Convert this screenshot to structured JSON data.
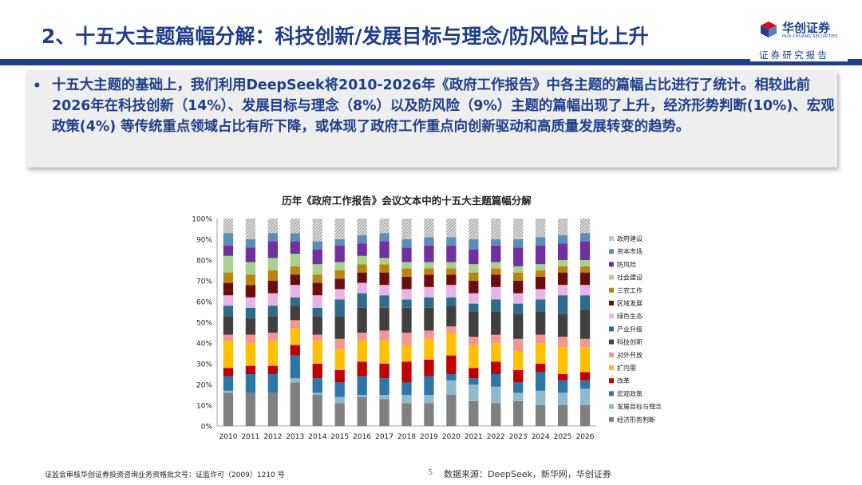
{
  "header": {
    "title": "2、十五大主题篇幅分解：科技创新/发展目标与理念/防风险占比上升",
    "logo_text": "华创证券",
    "logo_en": "HUA CHUANG SECURITIES",
    "report_tag": "证券研究报告"
  },
  "summary": {
    "bullet": "•",
    "text": "十五大主题的基础上，我们利用DeepSeek将2010-2026年《政府工作报告》中各主题的篇幅占比进行了统计。相较此前2026年在科技创新（14%）、发展目标与理念（8%）以及防风险（9%）主题的篇幅出现了上升，经济形势判断(10%)、宏观政策(4%) 等传统重点领域占比有所下降，或体现了政府工作重点向创新驱动和高质量发展转变的趋势。"
  },
  "footer": {
    "license": "证监会审核华创证券投资咨询业务资格批文号：证监许可（2009）1210 号",
    "page": "5",
    "source": "数据来源：DeepSeek，新华网，华创证券"
  },
  "colors": {
    "brand": "#1f3e8c",
    "brand_red": "#c8102e"
  },
  "chart_data": {
    "type": "bar",
    "stacked": true,
    "percent": true,
    "title": "历年《政府工作报告》会议文本中的十五大主题篇幅分解",
    "ylim": [
      0,
      100
    ],
    "yticks": [
      "0%",
      "10%",
      "20%",
      "30%",
      "40%",
      "50%",
      "60%",
      "70%",
      "80%",
      "90%",
      "100%"
    ],
    "legend_position": "right",
    "categories": [
      "2010",
      "2011",
      "2012",
      "2013",
      "2014",
      "2015",
      "2016",
      "2017",
      "2018",
      "2019",
      "2020",
      "2021",
      "2022",
      "2023",
      "2024",
      "2025",
      "2026"
    ],
    "series": [
      {
        "name": "经济形势判断",
        "color": "#808080",
        "values": [
          16,
          16,
          16,
          21,
          15,
          11,
          14,
          13,
          11,
          11,
          15,
          12,
          11,
          12,
          10,
          10,
          10
        ]
      },
      {
        "name": "发展目标与理念",
        "color": "#8fb9cf",
        "values": [
          1,
          0,
          0,
          2,
          1,
          3,
          1,
          2,
          4,
          4,
          7,
          8,
          8,
          4,
          7,
          6,
          8
        ]
      },
      {
        "name": "宏观政策",
        "color": "#2e75a8",
        "values": [
          7,
          9,
          9,
          11,
          7,
          7,
          9,
          8,
          6,
          9,
          3,
          3,
          6,
          5,
          9,
          6,
          4
        ]
      },
      {
        "name": "改革",
        "color": "#c00000",
        "values": [
          4,
          4,
          4,
          5,
          7,
          6,
          7,
          7,
          10,
          8,
          9,
          5,
          6,
          6,
          4,
          3,
          4
        ]
      },
      {
        "name": "扩内需",
        "color": "#ffc000",
        "values": [
          13,
          11,
          12,
          8,
          11,
          10,
          10,
          11,
          8,
          10,
          11,
          11,
          9,
          9,
          10,
          13,
          12
        ]
      },
      {
        "name": "对外开放",
        "color": "#f4968f",
        "values": [
          3,
          4,
          4,
          4,
          3,
          5,
          4,
          5,
          6,
          4,
          3,
          4,
          4,
          6,
          4,
          5,
          4
        ]
      },
      {
        "name": "科技创新",
        "color": "#404040",
        "values": [
          9,
          8,
          8,
          7,
          9,
          11,
          12,
          11,
          12,
          11,
          10,
          12,
          11,
          12,
          11,
          11,
          14
        ]
      },
      {
        "name": "产业升级",
        "color": "#2f6b8c",
        "values": [
          5,
          5,
          5,
          4,
          4,
          8,
          7,
          6,
          4,
          5,
          4,
          4,
          6,
          5,
          6,
          9,
          7
        ]
      },
      {
        "name": "绿色生态",
        "color": "#e4b5e6",
        "values": [
          5,
          5,
          6,
          6,
          6,
          5,
          5,
          5,
          5,
          5,
          6,
          5,
          6,
          5,
          5,
          5,
          5
        ]
      },
      {
        "name": "区域发展",
        "color": "#6b0d0d",
        "values": [
          6,
          6,
          6,
          5,
          6,
          5,
          5,
          6,
          6,
          6,
          5,
          6,
          6,
          6,
          6,
          6,
          6
        ]
      },
      {
        "name": "三农工作",
        "color": "#b8860b",
        "values": [
          5,
          5,
          5,
          4,
          4,
          4,
          4,
          4,
          4,
          3,
          3,
          4,
          3,
          4,
          3,
          3,
          3
        ]
      },
      {
        "name": "社会建设",
        "color": "#a9d18e",
        "values": [
          8,
          6,
          6,
          6,
          5,
          4,
          4,
          3,
          3,
          3,
          3,
          4,
          3,
          3,
          3,
          3,
          3
        ]
      },
      {
        "name": "防风险",
        "color": "#7030a0",
        "values": [
          5,
          7,
          8,
          6,
          7,
          8,
          6,
          8,
          7,
          8,
          8,
          7,
          8,
          9,
          9,
          8,
          9
        ]
      },
      {
        "name": "资本市场",
        "color": "#5b8db5",
        "values": [
          6,
          4,
          4,
          4,
          4,
          3,
          4,
          4,
          4,
          4,
          4,
          5,
          3,
          4,
          4,
          4,
          4
        ]
      },
      {
        "name": "政府建设",
        "color": "#c8c8c8",
        "values": [
          7,
          10,
          7,
          7,
          11,
          10,
          8,
          7,
          10,
          9,
          9,
          10,
          10,
          10,
          9,
          8,
          7
        ]
      }
    ]
  }
}
